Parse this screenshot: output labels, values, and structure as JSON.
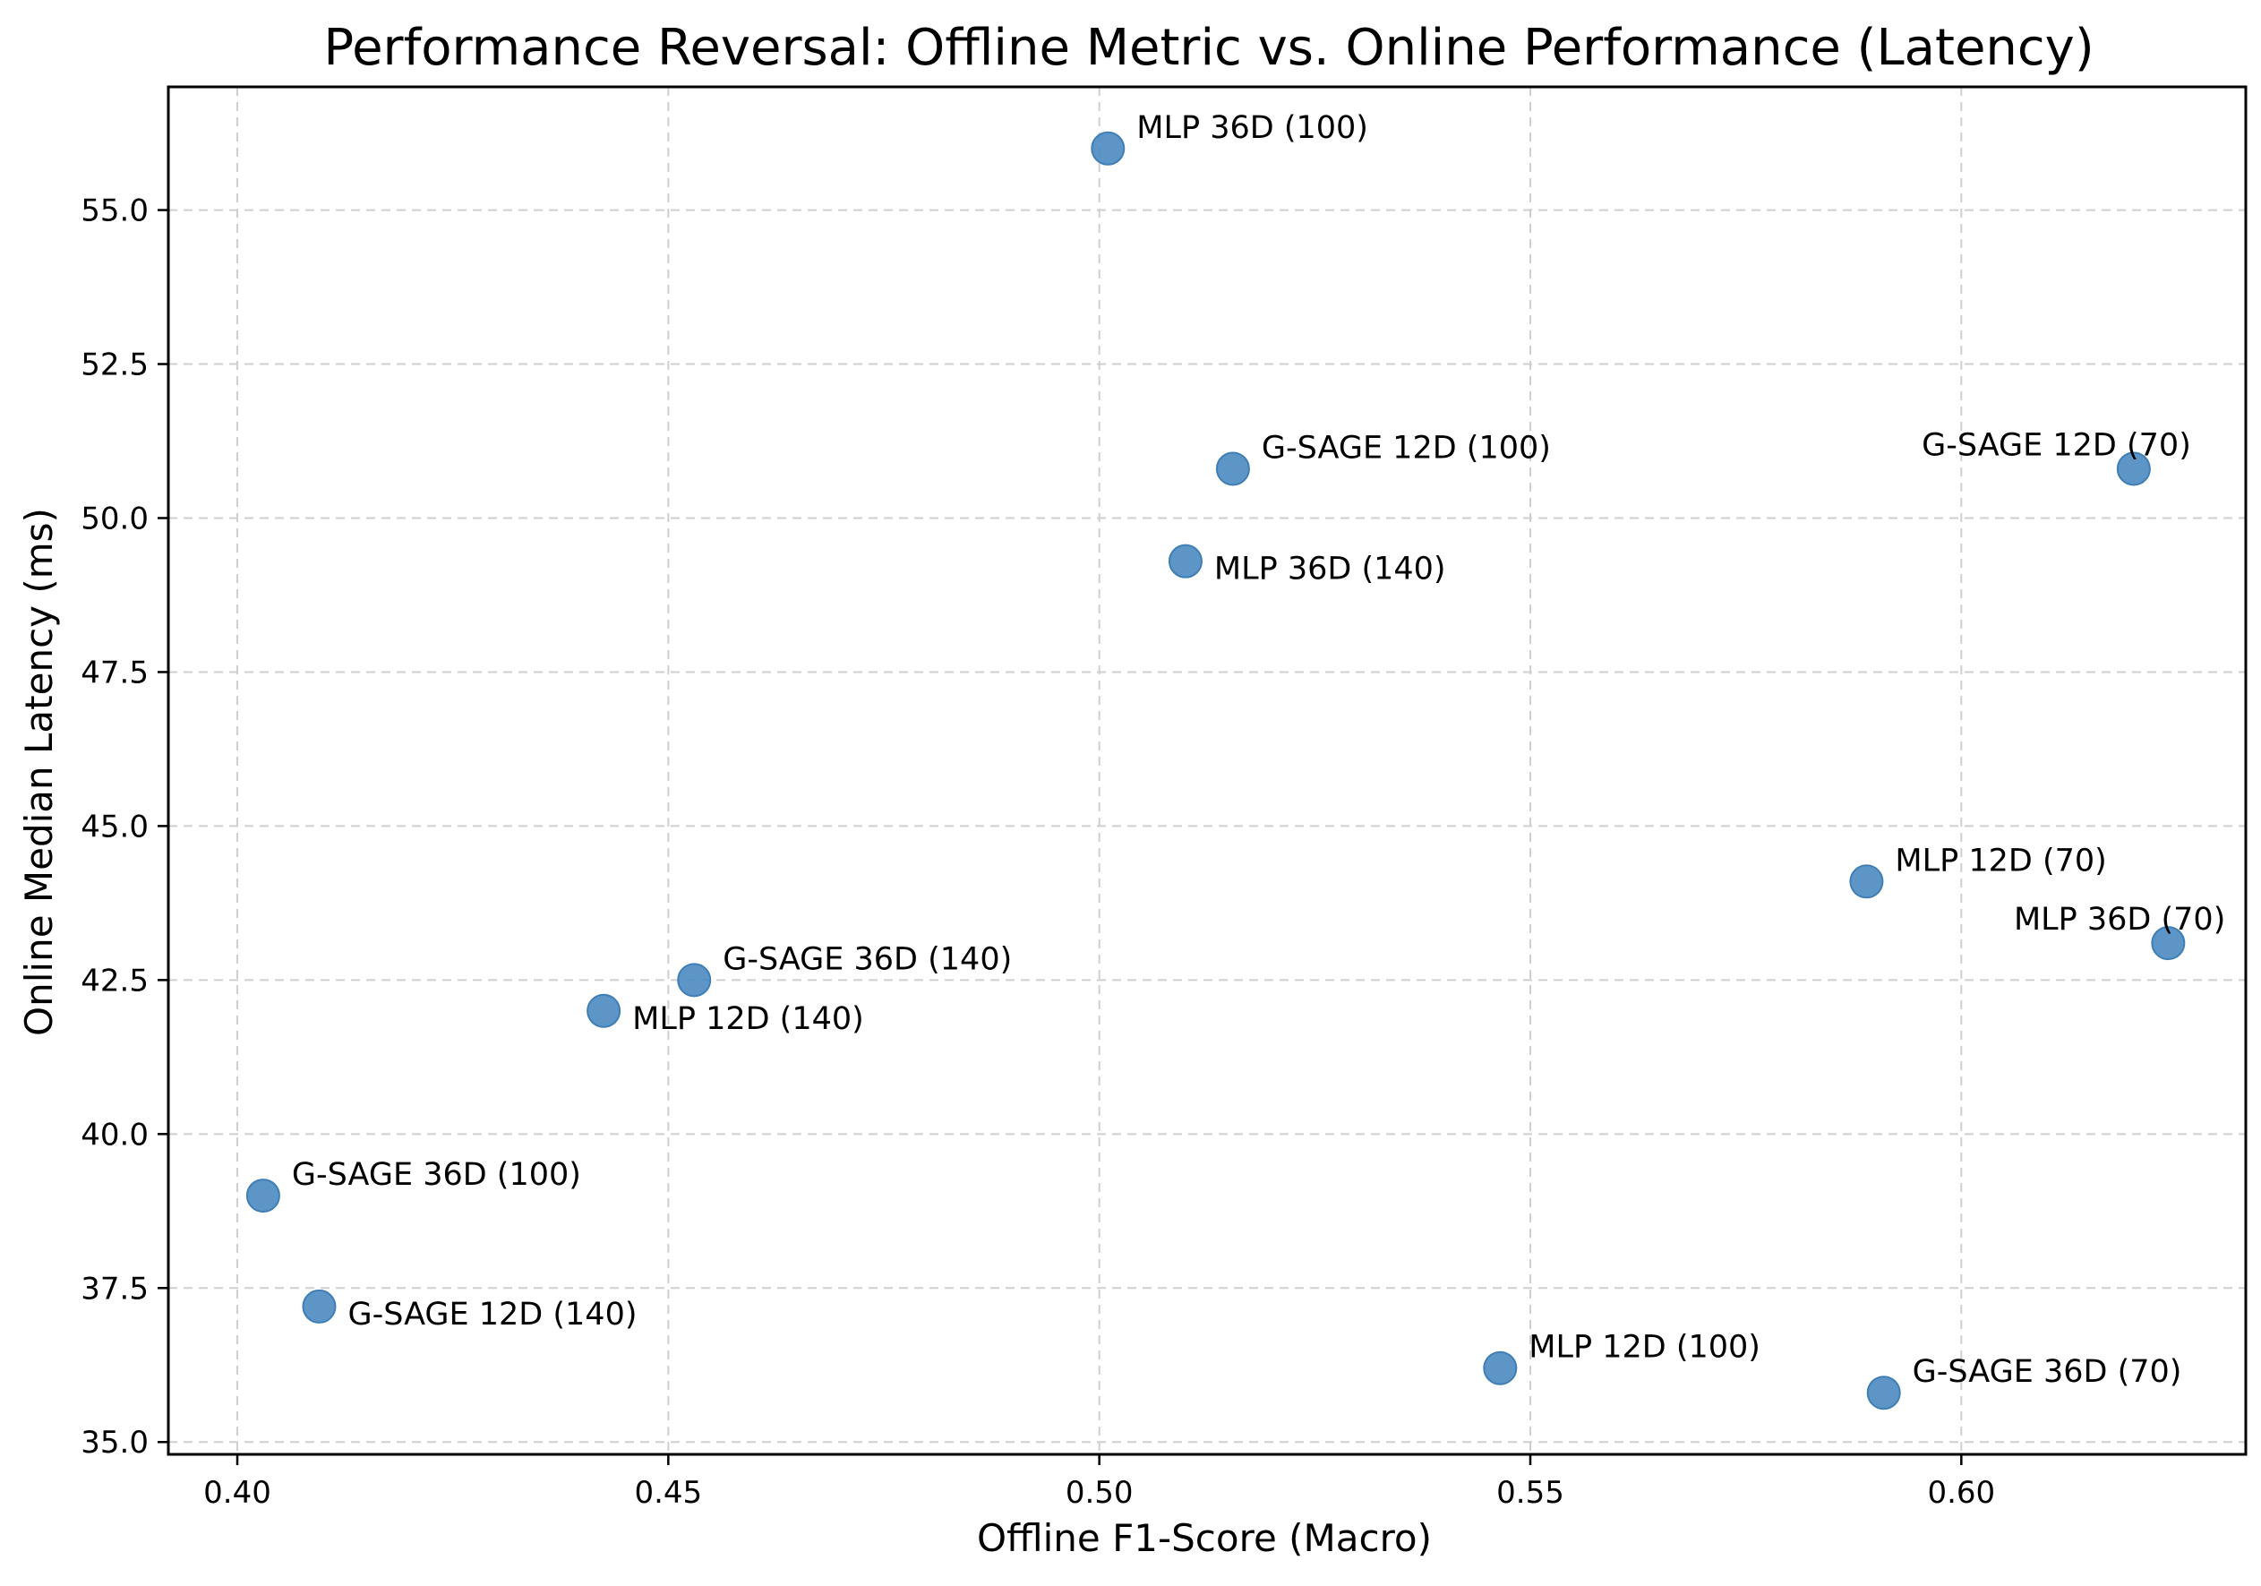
{
  "chart_data": {
    "type": "scatter",
    "title": "Performance Reversal: Offline Metric vs. Online Performance (Latency)",
    "xlabel": "Offline F1-Score (Macro)",
    "ylabel": "Online Median Latency (ms)",
    "xlim": [
      0.392,
      0.633
    ],
    "ylim": [
      34.8,
      57.0
    ],
    "xticks": [
      0.4,
      0.45,
      0.5,
      0.55,
      0.6
    ],
    "xtick_labels": [
      "0.40",
      "0.45",
      "0.50",
      "0.55",
      "0.60"
    ],
    "yticks": [
      35.0,
      37.5,
      40.0,
      42.5,
      45.0,
      47.5,
      50.0,
      52.5,
      55.0
    ],
    "ytick_labels": [
      "35.0",
      "37.5",
      "40.0",
      "42.5",
      "45.0",
      "47.5",
      "50.0",
      "52.5",
      "55.0"
    ],
    "grid": true,
    "marker_color": "#4a89c0",
    "points": [
      {
        "label": "MLP 36D (100)",
        "x": 0.501,
        "y": 56.0,
        "anchor": "upper-right"
      },
      {
        "label": "G-SAGE 12D (100)",
        "x": 0.5155,
        "y": 50.8,
        "anchor": "upper-right"
      },
      {
        "label": "MLP 36D (140)",
        "x": 0.51,
        "y": 49.3,
        "anchor": "lower-right"
      },
      {
        "label": "G-SAGE 12D (70)",
        "x": 0.62,
        "y": 50.8,
        "anchor": "upper-left"
      },
      {
        "label": "MLP 12D (70)",
        "x": 0.589,
        "y": 44.1,
        "anchor": "upper-right"
      },
      {
        "label": "MLP 36D (70)",
        "x": 0.624,
        "y": 43.1,
        "anchor": "upper-left"
      },
      {
        "label": "G-SAGE 36D (140)",
        "x": 0.453,
        "y": 42.5,
        "anchor": "upper-right"
      },
      {
        "label": "MLP 12D (140)",
        "x": 0.4425,
        "y": 42.0,
        "anchor": "lower-right"
      },
      {
        "label": "G-SAGE 36D (100)",
        "x": 0.403,
        "y": 39.0,
        "anchor": "upper-right"
      },
      {
        "label": "G-SAGE 12D (140)",
        "x": 0.4095,
        "y": 37.2,
        "anchor": "lower-right"
      },
      {
        "label": "MLP 12D (100)",
        "x": 0.5465,
        "y": 36.2,
        "anchor": "upper-right"
      },
      {
        "label": "G-SAGE 36D (70)",
        "x": 0.591,
        "y": 35.8,
        "anchor": "upper-right"
      }
    ]
  }
}
